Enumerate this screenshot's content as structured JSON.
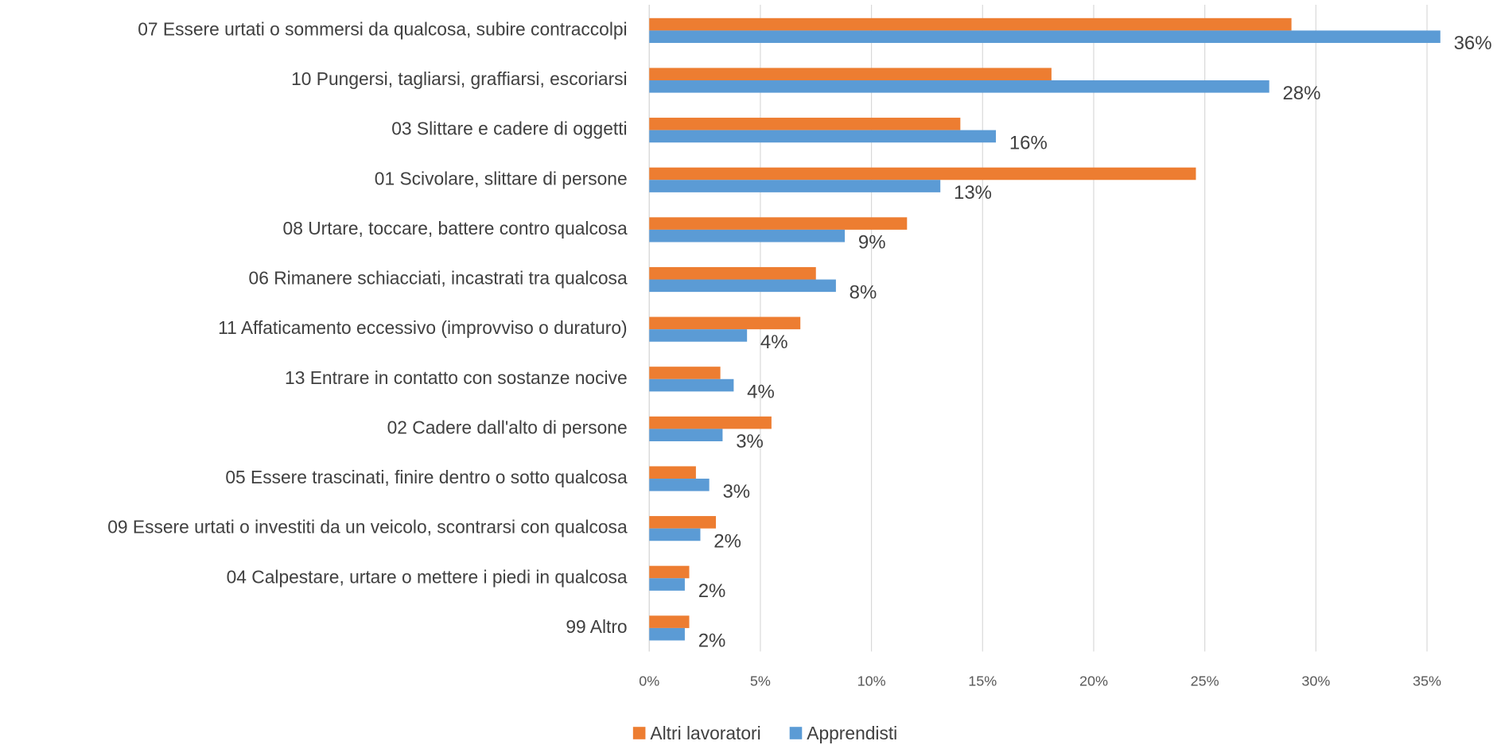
{
  "chart_data": {
    "type": "hbar",
    "categories": [
      "07 Essere urtati o sommersi da qualcosa, subire contraccolpi",
      "10 Pungersi, tagliarsi, graffiarsi, escoriarsi",
      "03 Slittare e cadere di oggetti",
      "01 Scivolare, slittare di persone",
      "08 Urtare, toccare, battere contro qualcosa",
      "06 Rimanere schiacciati, incastrati tra qualcosa",
      "11 Affaticamento eccessivo (improvviso o duraturo)",
      "13 Entrare in contatto con sostanze nocive",
      "02 Cadere dall'alto di persone",
      "05 Essere trascinati, finire dentro o sotto qualcosa",
      "09 Essere urtati o investiti da un veicolo, scontrarsi con qualcosa",
      "04 Calpestare, urtare o mettere i piedi in qualcosa",
      "99 Altro"
    ],
    "series": [
      {
        "name": "Altri lavoratori",
        "color": "#ed7d31",
        "values": [
          28.9,
          18.1,
          14.0,
          24.6,
          11.6,
          7.5,
          6.8,
          3.2,
          5.5,
          2.1,
          3.0,
          1.8,
          1.8
        ]
      },
      {
        "name": "Apprendisti",
        "color": "#5b9bd5",
        "values": [
          35.6,
          27.9,
          15.6,
          13.1,
          8.8,
          8.4,
          4.4,
          3.8,
          3.3,
          2.7,
          2.3,
          1.6,
          1.6
        ],
        "value_labels": [
          "36%",
          "28%",
          "16%",
          "13%",
          "9%",
          "8%",
          "4%",
          "4%",
          "3%",
          "3%",
          "2%",
          "2%",
          "2%"
        ]
      }
    ],
    "xlim": [
      0,
      35
    ],
    "xticks": [
      {
        "value": 0,
        "label": "0%"
      },
      {
        "value": 5,
        "label": "5%"
      },
      {
        "value": 10,
        "label": "10%"
      },
      {
        "value": 15,
        "label": "15%"
      },
      {
        "value": 20,
        "label": "20%"
      },
      {
        "value": 25,
        "label": "25%"
      },
      {
        "value": 30,
        "label": "30%"
      },
      {
        "value": 35,
        "label": "35%"
      }
    ],
    "grid": true,
    "legend": "bottom"
  }
}
